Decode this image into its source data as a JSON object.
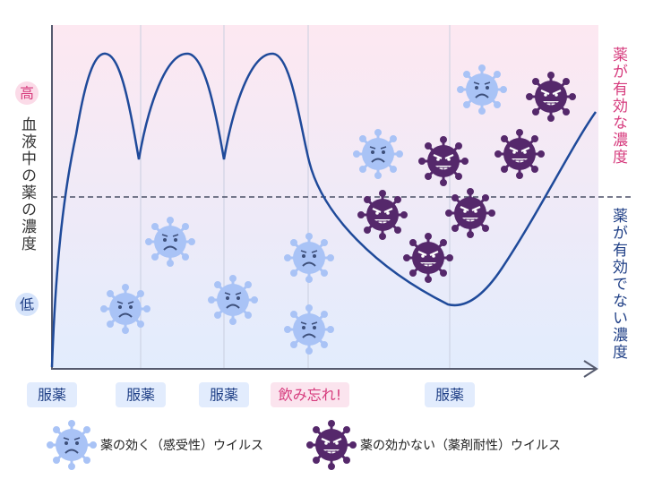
{
  "y_axis": {
    "high": "高",
    "label": "血液中の薬の濃度",
    "low": "低"
  },
  "zones": {
    "effective": "薬が有効な濃度",
    "ineffective": "薬が有効でない濃度"
  },
  "x_labels": [
    "服薬",
    "服薬",
    "服薬",
    "飲み忘れ!",
    "服薬"
  ],
  "legend": {
    "sensitive": "薬の効く（感受性）ウイルス",
    "resistant": "薬の効かない（薬剤耐性）ウイルス"
  }
}
